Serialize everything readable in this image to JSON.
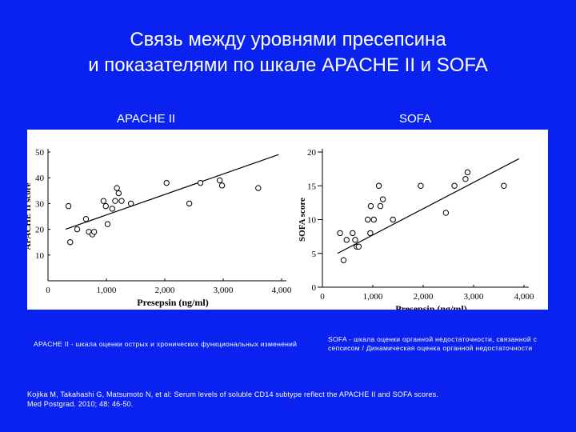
{
  "slide": {
    "title_line1": "Связь между уровнями пресепсина",
    "title_line2": "и показателями по шкале APACHE II и SOFA",
    "left_heading": "APACHE II",
    "right_heading": "SOFA",
    "note_left": "APACHE II - шкала оценки острых и хронических функциональных изменений",
    "note_right": "SOFA - шкала оценки органной недостаточности, связанной с сепсисом / Динамическая оценка органной недостаточности",
    "reference_line1": "Kojika M, Takahashi G, Matsumoto N, et al: Serum levels of soluble CD14 subtype reflect the APACHE II and SOFA scores.",
    "reference_line2": "Med Postgrad. 2010; 48: 46-50."
  },
  "chart_data": [
    {
      "type": "scatter",
      "xlabel": "Presepsin (ng/ml)",
      "ylabel": "APACHE II score",
      "xlim": [
        0,
        4000
      ],
      "ylim": [
        0,
        50
      ],
      "xticks": [
        0,
        1000,
        2000,
        3000,
        4000
      ],
      "xtick_labels": [
        "0",
        "1,000",
        "2,000",
        "3,000",
        "4,000"
      ],
      "yticks": [
        10,
        20,
        30,
        40,
        50
      ],
      "ytick_labels": [
        "10",
        "20",
        "30",
        "40",
        "50"
      ],
      "grid": false,
      "points": [
        [
          350,
          29
        ],
        [
          380,
          15
        ],
        [
          500,
          20
        ],
        [
          650,
          24
        ],
        [
          700,
          19
        ],
        [
          760,
          18
        ],
        [
          790,
          19
        ],
        [
          950,
          31
        ],
        [
          990,
          29
        ],
        [
          1020,
          22
        ],
        [
          1100,
          28
        ],
        [
          1150,
          31
        ],
        [
          1180,
          36
        ],
        [
          1210,
          34
        ],
        [
          1260,
          31
        ],
        [
          1420,
          30
        ],
        [
          2030,
          38
        ],
        [
          2420,
          30
        ],
        [
          2610,
          38
        ],
        [
          2940,
          39
        ],
        [
          2980,
          37
        ],
        [
          3600,
          36
        ]
      ],
      "trendline": [
        [
          300,
          20
        ],
        [
          3950,
          49
        ]
      ]
    },
    {
      "type": "scatter",
      "xlabel": "Presepsin (ng/ml)",
      "ylabel": "SOFA score",
      "xlim": [
        0,
        4000
      ],
      "ylim": [
        0,
        20
      ],
      "xticks": [
        0,
        1000,
        2000,
        3000,
        4000
      ],
      "xtick_labels": [
        "0",
        "1,000",
        "2,000",
        "3,000",
        "4,000"
      ],
      "yticks": [
        0,
        5,
        10,
        15,
        20
      ],
      "ytick_labels": [
        "0",
        "5",
        "10",
        "15",
        "20"
      ],
      "grid": false,
      "points": [
        [
          350,
          8
        ],
        [
          420,
          4
        ],
        [
          480,
          7
        ],
        [
          600,
          8
        ],
        [
          650,
          7
        ],
        [
          680,
          6
        ],
        [
          720,
          6
        ],
        [
          900,
          10
        ],
        [
          950,
          8
        ],
        [
          960,
          12
        ],
        [
          1020,
          10
        ],
        [
          1120,
          15
        ],
        [
          1150,
          12
        ],
        [
          1200,
          13
        ],
        [
          1400,
          10
        ],
        [
          1950,
          15
        ],
        [
          2450,
          11
        ],
        [
          2620,
          15
        ],
        [
          2840,
          16
        ],
        [
          2880,
          17
        ],
        [
          3600,
          15
        ]
      ],
      "trendline": [
        [
          300,
          5
        ],
        [
          3900,
          19
        ]
      ]
    }
  ]
}
